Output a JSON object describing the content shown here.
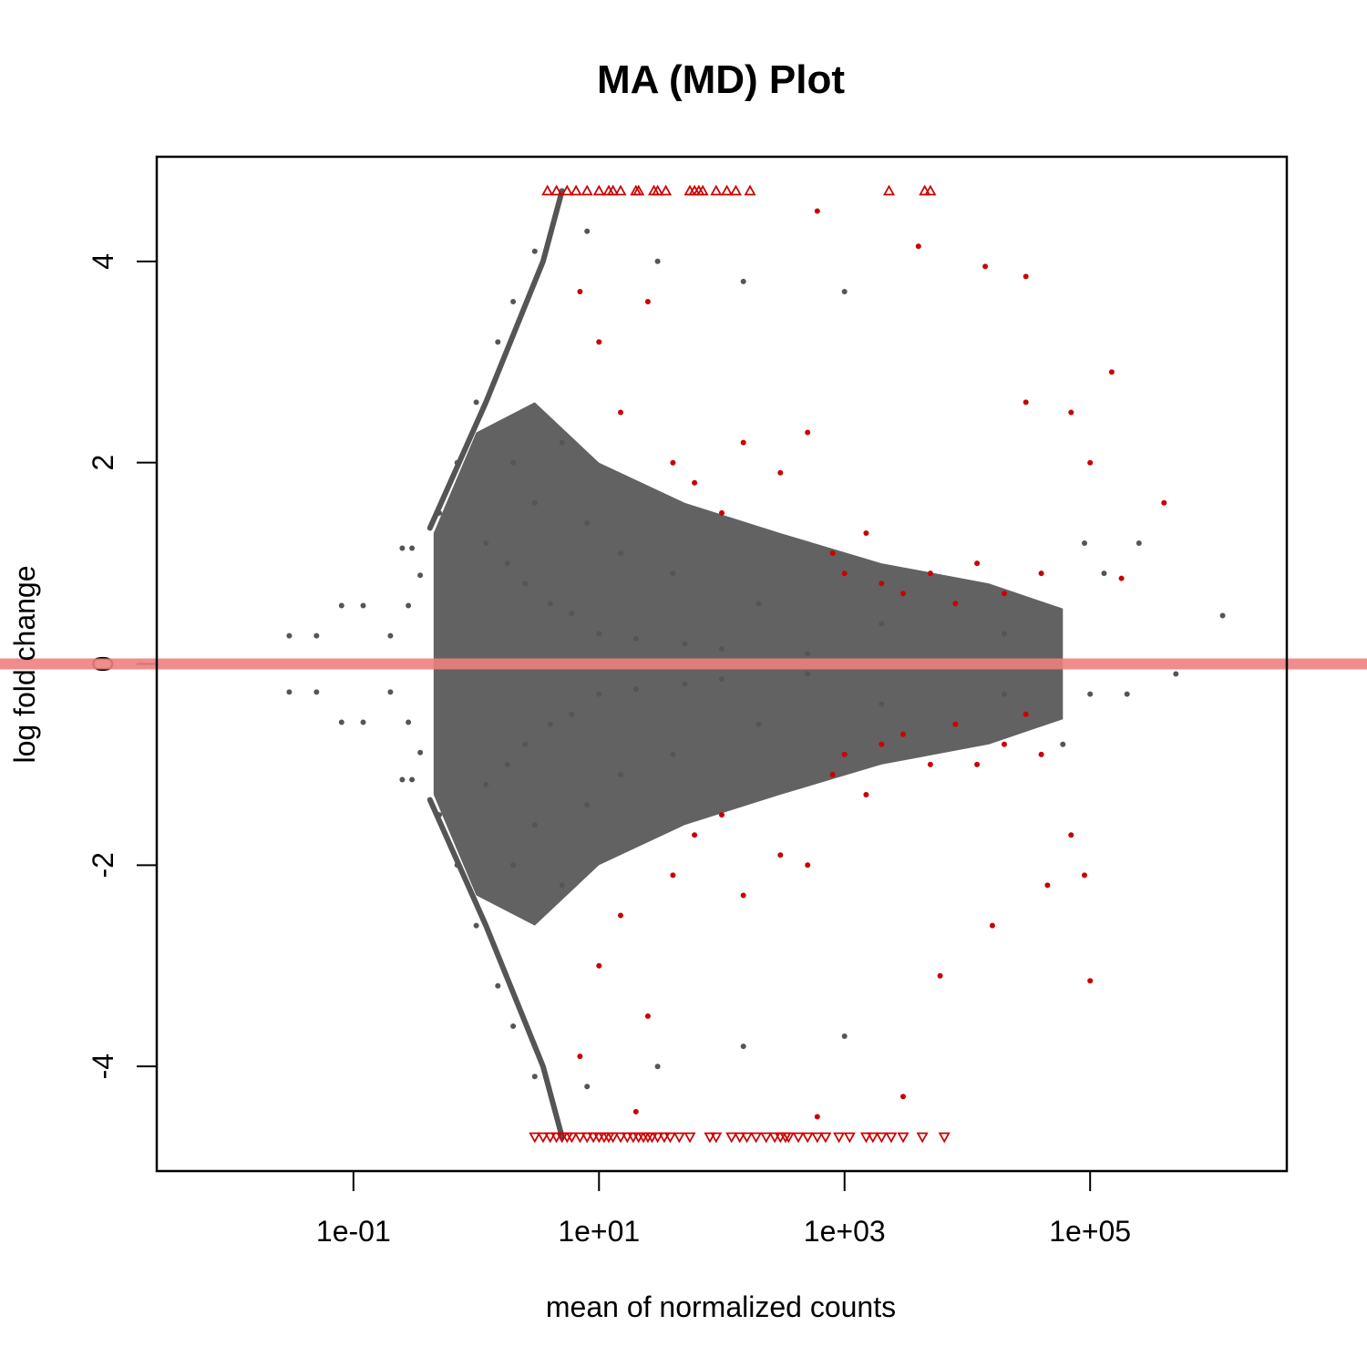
{
  "chart_data": {
    "type": "scatter",
    "title": "MA (MD) Plot",
    "xlabel": "mean of normalized counts",
    "ylabel": "log fold change",
    "x_scale": "log10",
    "xlim": [
      0.0025,
      4000000
    ],
    "ylim": [
      -5.04,
      5.04
    ],
    "x_ticks": [
      {
        "value": 0.1,
        "label": "1e-01"
      },
      {
        "value": 10,
        "label": "1e+01"
      },
      {
        "value": 1000,
        "label": "1e+03"
      },
      {
        "value": 100000,
        "label": "1e+05"
      }
    ],
    "y_ticks": [
      {
        "value": -4,
        "label": "-4"
      },
      {
        "value": -2,
        "label": "-2"
      },
      {
        "value": 0,
        "label": "0"
      },
      {
        "value": 2,
        "label": "2"
      },
      {
        "value": 4,
        "label": "4"
      }
    ],
    "reference_line": {
      "y": 0,
      "color": "#f08080"
    },
    "colors": {
      "not_significant": "#555555",
      "significant": "#cc0000"
    },
    "clipped_marker_ylim": [
      -4.7,
      4.7
    ],
    "series": [
      {
        "name": "",
        "color": "#555555",
        "points": [
          [
            0.03,
            0.28
          ],
          [
            0.05,
            0.28
          ],
          [
            0.08,
            0.58
          ],
          [
            0.12,
            0.58
          ],
          [
            0.2,
            0.28
          ],
          [
            0.28,
            0.58
          ],
          [
            0.35,
            0.88
          ],
          [
            0.03,
            -0.28
          ],
          [
            0.05,
            -0.28
          ],
          [
            0.08,
            -0.58
          ],
          [
            0.12,
            -0.58
          ],
          [
            0.2,
            -0.28
          ],
          [
            0.28,
            -0.58
          ],
          [
            0.35,
            -0.88
          ],
          [
            0.25,
            1.15
          ],
          [
            0.3,
            1.15
          ],
          [
            0.25,
            -1.15
          ],
          [
            0.3,
            -1.15
          ],
          [
            0.5,
            1.5
          ],
          [
            0.7,
            2.0
          ],
          [
            1.0,
            2.6
          ],
          [
            1.5,
            3.2
          ],
          [
            2.0,
            3.6
          ],
          [
            3.0,
            4.1
          ],
          [
            5.0,
            4.7
          ],
          [
            0.5,
            -1.5
          ],
          [
            0.7,
            -2.0
          ],
          [
            1.0,
            -2.6
          ],
          [
            1.5,
            -3.2
          ],
          [
            2.0,
            -3.6
          ],
          [
            3.0,
            -4.1
          ],
          [
            5.0,
            -4.7
          ],
          [
            1.2,
            1.2
          ],
          [
            1.8,
            1.0
          ],
          [
            2.5,
            0.8
          ],
          [
            4,
            0.6
          ],
          [
            6,
            0.5
          ],
          [
            10,
            0.3
          ],
          [
            20,
            0.25
          ],
          [
            50,
            0.2
          ],
          [
            100,
            0.15
          ],
          [
            500,
            0.1
          ],
          [
            1.2,
            -1.2
          ],
          [
            1.8,
            -1.0
          ],
          [
            2.5,
            -0.8
          ],
          [
            4,
            -0.6
          ],
          [
            6,
            -0.5
          ],
          [
            10,
            -0.3
          ],
          [
            20,
            -0.25
          ],
          [
            50,
            -0.2
          ],
          [
            100,
            -0.15
          ],
          [
            500,
            -0.1
          ],
          [
            2,
            2.0
          ],
          [
            3,
            1.6
          ],
          [
            5,
            2.2
          ],
          [
            8,
            1.4
          ],
          [
            15,
            1.1
          ],
          [
            40,
            0.9
          ],
          [
            200,
            0.6
          ],
          [
            2000,
            0.4
          ],
          [
            20000,
            0.3
          ],
          [
            2,
            -2.0
          ],
          [
            3,
            -1.6
          ],
          [
            5,
            -2.2
          ],
          [
            8,
            -1.4
          ],
          [
            15,
            -1.1
          ],
          [
            40,
            -0.9
          ],
          [
            200,
            -0.6
          ],
          [
            2000,
            -0.4
          ],
          [
            20000,
            -0.3
          ],
          [
            8,
            4.3
          ],
          [
            30,
            4.0
          ],
          [
            150,
            3.8
          ],
          [
            1000,
            3.7
          ],
          [
            90000,
            1.2
          ],
          [
            130000,
            0.9
          ],
          [
            250000,
            1.2
          ],
          [
            500000,
            -0.1
          ],
          [
            1200000,
            0.48
          ],
          [
            8,
            -4.2
          ],
          [
            30,
            -4.0
          ],
          [
            150,
            -3.8
          ],
          [
            1000,
            -3.7
          ],
          [
            60000,
            -0.8
          ],
          [
            100000,
            -0.3
          ],
          [
            200000,
            -0.3
          ]
        ]
      },
      {
        "name": "",
        "color": "#cc0000",
        "points": [
          [
            7,
            3.7
          ],
          [
            10,
            3.2
          ],
          [
            15,
            2.5
          ],
          [
            25,
            3.6
          ],
          [
            40,
            2.0
          ],
          [
            60,
            1.8
          ],
          [
            100,
            1.5
          ],
          [
            150,
            2.2
          ],
          [
            300,
            1.9
          ],
          [
            500,
            2.3
          ],
          [
            800,
            1.1
          ],
          [
            1000,
            0.9
          ],
          [
            1500,
            1.3
          ],
          [
            2000,
            0.8
          ],
          [
            3000,
            0.7
          ],
          [
            5000,
            0.9
          ],
          [
            8000,
            0.6
          ],
          [
            12000,
            1.0
          ],
          [
            20000,
            0.7
          ],
          [
            40000,
            0.9
          ],
          [
            600,
            4.5
          ],
          [
            4000,
            4.15
          ],
          [
            14000,
            3.95
          ],
          [
            30000,
            3.85
          ],
          [
            30000,
            2.6
          ],
          [
            70000,
            2.5
          ],
          [
            100000,
            2.0
          ],
          [
            150000,
            2.9
          ],
          [
            400000,
            1.6
          ],
          [
            180000,
            0.85
          ],
          [
            7,
            -3.9
          ],
          [
            10,
            -3.0
          ],
          [
            15,
            -2.5
          ],
          [
            25,
            -3.5
          ],
          [
            40,
            -2.1
          ],
          [
            60,
            -1.7
          ],
          [
            100,
            -1.5
          ],
          [
            150,
            -2.3
          ],
          [
            300,
            -1.9
          ],
          [
            500,
            -2.0
          ],
          [
            800,
            -1.1
          ],
          [
            1000,
            -0.9
          ],
          [
            1500,
            -1.3
          ],
          [
            2000,
            -0.8
          ],
          [
            3000,
            -0.7
          ],
          [
            5000,
            -1.0
          ],
          [
            8000,
            -0.6
          ],
          [
            12000,
            -1.0
          ],
          [
            20000,
            -0.8
          ],
          [
            40000,
            -0.9
          ],
          [
            100000,
            -3.15
          ],
          [
            6000,
            -3.1
          ],
          [
            16000,
            -2.6
          ],
          [
            45000,
            -2.2
          ],
          [
            70000,
            -1.7
          ],
          [
            90000,
            -2.1
          ],
          [
            3000,
            -4.3
          ],
          [
            20,
            -4.45
          ],
          [
            600,
            -4.5
          ],
          [
            30000,
            -0.5
          ]
        ]
      },
      {
        "name": "",
        "color": "#cc0000",
        "marker": "triangle-up",
        "x": [
          3.8,
          4.5,
          5.5,
          6.5,
          8,
          10,
          12,
          13,
          15,
          20,
          21,
          28,
          30,
          35,
          55,
          60,
          65,
          70,
          90,
          110,
          130,
          170,
          2300,
          4500,
          5000
        ],
        "y": 4.7
      },
      {
        "name": "",
        "color": "#cc0000",
        "marker": "triangle-down",
        "x": [
          3,
          3.5,
          4,
          4.5,
          5,
          5.5,
          6,
          7,
          8,
          9,
          10,
          11,
          12,
          13,
          15,
          17,
          19,
          21,
          23,
          25,
          27,
          30,
          34,
          38,
          45,
          55,
          80,
          90,
          120,
          140,
          160,
          190,
          230,
          270,
          300,
          330,
          350,
          420,
          500,
          600,
          700,
          900,
          1100,
          1500,
          1700,
          2000,
          2400,
          3000,
          4300,
          6500
        ],
        "y": -4.7
      }
    ]
  }
}
